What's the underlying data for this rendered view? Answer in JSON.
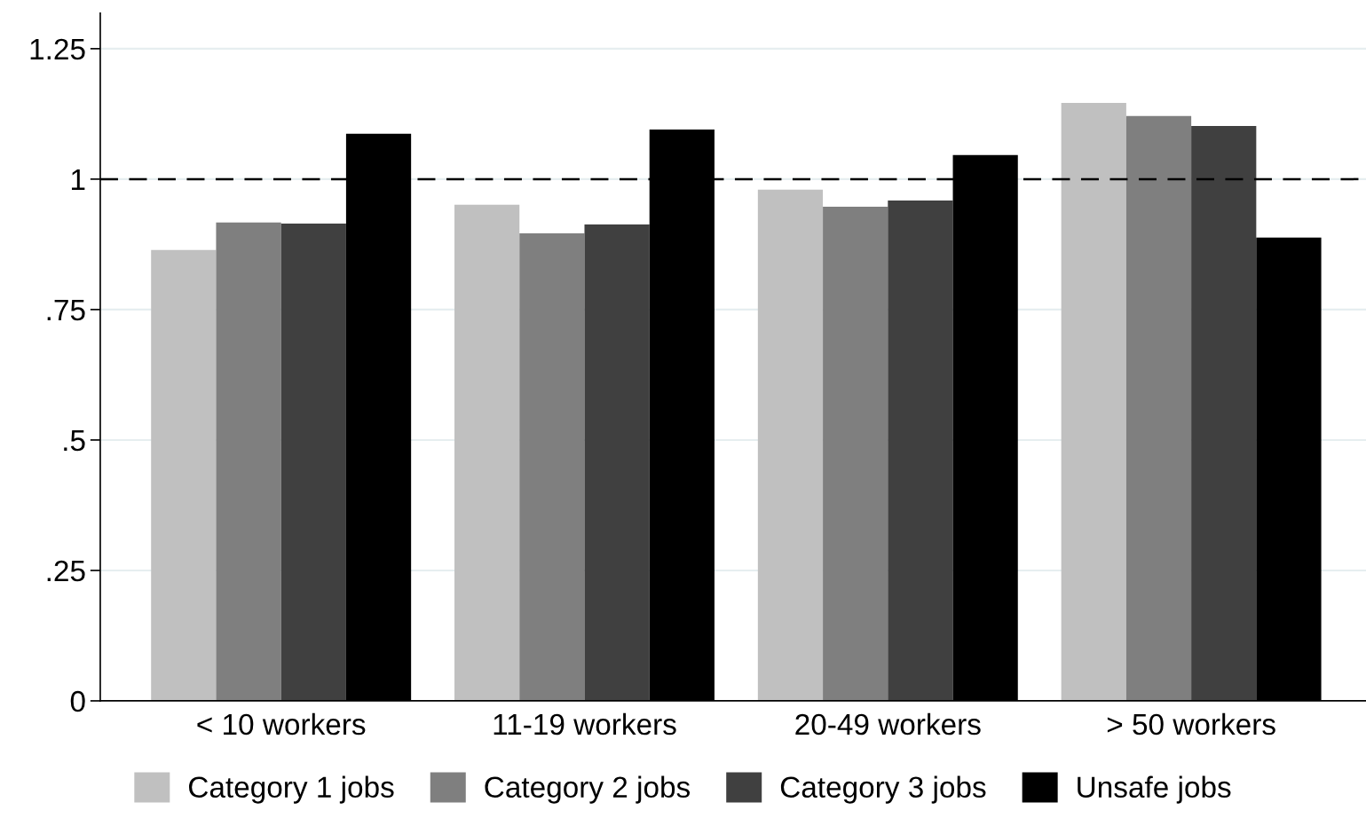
{
  "chart_data": {
    "type": "bar",
    "categories": [
      "< 10 workers",
      "11-19 workers",
      "20-49 workers",
      "> 50 workers"
    ],
    "series": [
      {
        "name": "Category 1 jobs",
        "color": "#c0c0c0",
        "values": [
          0.864,
          0.951,
          0.98,
          1.146
        ]
      },
      {
        "name": "Category 2 jobs",
        "color": "#7f7f7f",
        "values": [
          0.917,
          0.896,
          0.947,
          1.121
        ]
      },
      {
        "name": "Category 3 jobs",
        "color": "#404040",
        "values": [
          0.915,
          0.913,
          0.959,
          1.102
        ]
      },
      {
        "name": "Unsafe jobs",
        "color": "#000000",
        "values": [
          1.087,
          1.095,
          1.046,
          0.888
        ]
      }
    ],
    "ylim": [
      0,
      1.318
    ],
    "yticks": [
      0,
      {
        "value": 0.25,
        "label": ".25"
      },
      {
        "value": 0.5,
        "label": ".5"
      },
      {
        "value": 0.75,
        "label": ".75"
      },
      1,
      1.25
    ],
    "ref_lines": [
      {
        "axis": "y",
        "value": 1,
        "color": "#000000",
        "line_style": "dashed"
      }
    ],
    "grid": "y",
    "legend": "bottom"
  }
}
